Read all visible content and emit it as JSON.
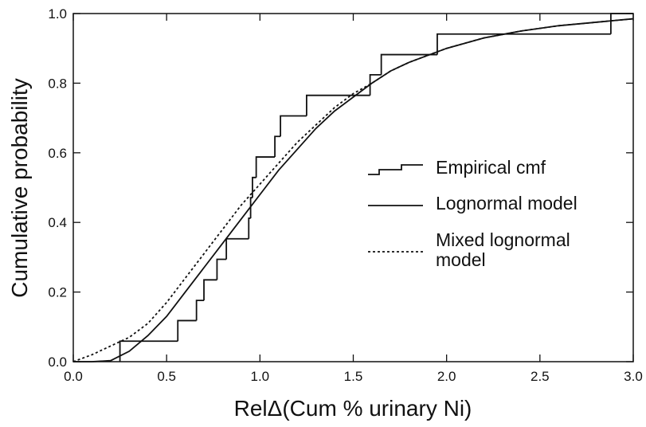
{
  "chart_data": {
    "type": "line",
    "xlabel": "RelΔ(Cum % urinary Ni)",
    "ylabel": "Cumulative probability",
    "xlim": [
      0,
      3
    ],
    "ylim": [
      0,
      1
    ],
    "xticks": [
      {
        "value": 0,
        "label": "0.0"
      },
      0.5,
      {
        "value": 1,
        "label": "1.0"
      },
      1.5,
      {
        "value": 2,
        "label": "2.0"
      },
      2.5,
      {
        "value": 3,
        "label": "3.0"
      }
    ],
    "yticks": [
      {
        "value": 0,
        "label": "0.0"
      },
      0.2,
      0.4,
      0.6,
      0.8,
      {
        "value": 1,
        "label": "1.0"
      }
    ],
    "series": [
      {
        "name": "Empirical cmf",
        "style": "step",
        "color": "#111111",
        "x": [
          0.25,
          0.56,
          0.66,
          0.7,
          0.77,
          0.82,
          0.94,
          0.95,
          0.96,
          0.98,
          1.08,
          1.11,
          1.25,
          1.59,
          1.65,
          1.95,
          2.88
        ],
        "values": [
          0.059,
          0.118,
          0.176,
          0.235,
          0.294,
          0.353,
          0.412,
          0.471,
          0.529,
          0.588,
          0.647,
          0.706,
          0.765,
          0.824,
          0.882,
          0.941,
          1.0
        ]
      },
      {
        "name": "Lognormal model",
        "style": "solid",
        "color": "#111111",
        "x": [
          0,
          0.1,
          0.2,
          0.3,
          0.4,
          0.5,
          0.6,
          0.7,
          0.8,
          0.9,
          1.0,
          1.1,
          1.2,
          1.3,
          1.4,
          1.5,
          1.6,
          1.7,
          1.8,
          1.9,
          2.0,
          2.2,
          2.4,
          2.6,
          2.8,
          3.0
        ],
        "values": [
          0,
          0,
          0.003,
          0.03,
          0.075,
          0.13,
          0.2,
          0.27,
          0.34,
          0.41,
          0.48,
          0.55,
          0.61,
          0.67,
          0.72,
          0.76,
          0.8,
          0.835,
          0.86,
          0.88,
          0.9,
          0.93,
          0.95,
          0.965,
          0.975,
          0.985
        ]
      },
      {
        "name": "Mixed lognormal model",
        "style": "dotted",
        "color": "#111111",
        "x": [
          0,
          0.1,
          0.2,
          0.3,
          0.4,
          0.5,
          0.6,
          0.7,
          0.8,
          0.9,
          1.0,
          1.1,
          1.2,
          1.3,
          1.4,
          1.5,
          1.6,
          1.7,
          1.8,
          1.9,
          2.0,
          2.2,
          2.4,
          2.6,
          2.8,
          3.0
        ],
        "values": [
          0,
          0.02,
          0.045,
          0.07,
          0.11,
          0.17,
          0.24,
          0.31,
          0.38,
          0.45,
          0.51,
          0.57,
          0.63,
          0.68,
          0.73,
          0.77,
          0.8,
          0.835,
          0.86,
          0.88,
          0.9,
          0.93,
          0.95,
          0.965,
          0.975,
          0.985
        ]
      }
    ]
  }
}
